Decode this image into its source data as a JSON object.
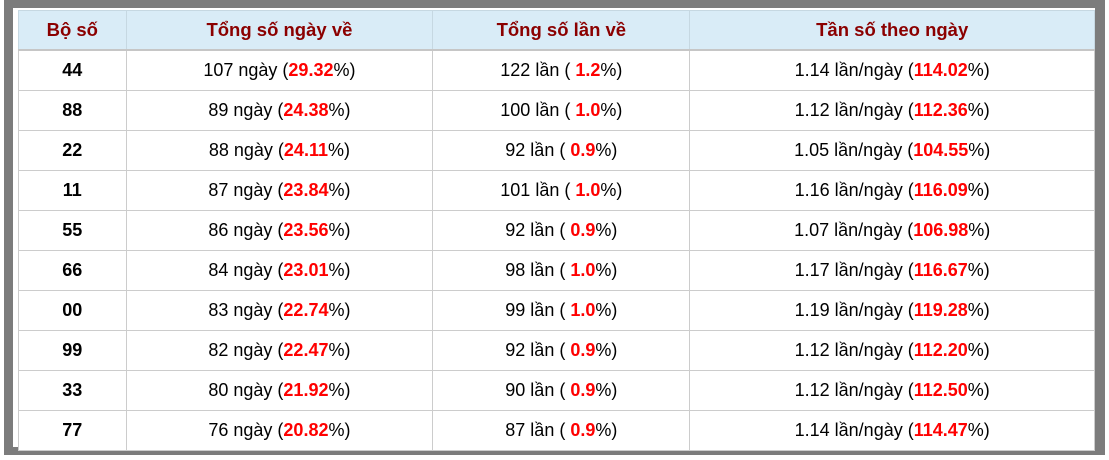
{
  "table": {
    "headers": [
      {
        "label": "Bộ số"
      },
      {
        "label": "Tổng số ngày về"
      },
      {
        "label": "Tổng số lần về"
      },
      {
        "label": "Tần số theo ngày"
      }
    ],
    "units": {
      "days": "ngày",
      "times": "lần",
      "freq": "lần/ngày"
    },
    "rows": [
      {
        "pair": "44",
        "days": "107",
        "days_pct": "29.32",
        "times": "122",
        "times_pct": "1.2",
        "freq": "1.14",
        "freq_pct": "114.02"
      },
      {
        "pair": "88",
        "days": "89",
        "days_pct": "24.38",
        "times": "100",
        "times_pct": "1.0",
        "freq": "1.12",
        "freq_pct": "112.36"
      },
      {
        "pair": "22",
        "days": "88",
        "days_pct": "24.11",
        "times": "92",
        "times_pct": "0.9",
        "freq": "1.05",
        "freq_pct": "104.55"
      },
      {
        "pair": "11",
        "days": "87",
        "days_pct": "23.84",
        "times": "101",
        "times_pct": "1.0",
        "freq": "1.16",
        "freq_pct": "116.09"
      },
      {
        "pair": "55",
        "days": "86",
        "days_pct": "23.56",
        "times": "92",
        "times_pct": "0.9",
        "freq": "1.07",
        "freq_pct": "106.98"
      },
      {
        "pair": "66",
        "days": "84",
        "days_pct": "23.01",
        "times": "98",
        "times_pct": "1.0",
        "freq": "1.17",
        "freq_pct": "116.67"
      },
      {
        "pair": "00",
        "days": "83",
        "days_pct": "22.74",
        "times": "99",
        "times_pct": "1.0",
        "freq": "1.19",
        "freq_pct": "119.28"
      },
      {
        "pair": "99",
        "days": "82",
        "days_pct": "22.47",
        "times": "92",
        "times_pct": "0.9",
        "freq": "1.12",
        "freq_pct": "112.20"
      },
      {
        "pair": "33",
        "days": "80",
        "days_pct": "21.92",
        "times": "90",
        "times_pct": "0.9",
        "freq": "1.12",
        "freq_pct": "112.50"
      },
      {
        "pair": "77",
        "days": "76",
        "days_pct": "20.82",
        "times": "87",
        "times_pct": "0.9",
        "freq": "1.14",
        "freq_pct": "114.47"
      }
    ],
    "colors": {
      "frame": "#7c7c7c",
      "header_bg": "#d9ecf7",
      "header_text": "#8b0000",
      "highlight": "#ff0000",
      "border": "#cccccc"
    }
  }
}
